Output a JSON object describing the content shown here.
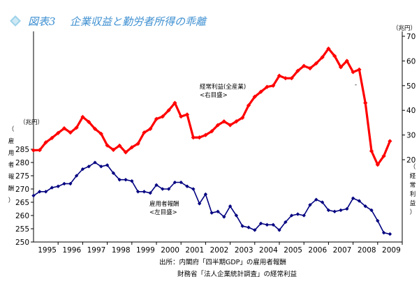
{
  "header": {
    "figure_label": "図表3",
    "title": "企業収益と勤労者所得の乖離"
  },
  "colors": {
    "profit_line": "#ff0000",
    "compensation_line": "#000080",
    "title_text": "#3d8fd1",
    "title_icon": "#9fd3ea"
  },
  "chart_data": {
    "type": "line",
    "title": "企業収益と勤労者所得の乖離",
    "x_labels": [
      "1995",
      "1996",
      "1997",
      "1998",
      "1999",
      "2000",
      "2001",
      "2002",
      "2003",
      "2004",
      "2005",
      "2006",
      "2007",
      "2008",
      "2009"
    ],
    "x_range": [
      1994.5,
      2009.5
    ],
    "left_axis": {
      "unit": "（兆円）",
      "label": "（雇用者報酬）",
      "ylim": [
        250,
        290
      ],
      "ticks": [
        250,
        255,
        260,
        265,
        270,
        275,
        280,
        285
      ]
    },
    "right_axis": {
      "unit": "（兆円）",
      "label": "（経常利益）",
      "ylim": [
        20,
        70
      ],
      "ticks": [
        20,
        30,
        40,
        50,
        60,
        70
      ]
    },
    "series": [
      {
        "name": "経常利益(全産業)",
        "sublabel": "<右目盛>",
        "axis": "right",
        "color": "#ff0000",
        "x": [
          1994.5,
          1994.75,
          1995,
          1995.25,
          1995.5,
          1995.75,
          1996,
          1996.25,
          1996.5,
          1996.75,
          1997,
          1997.25,
          1997.5,
          1997.75,
          1998,
          1998.25,
          1998.5,
          1998.75,
          1999,
          1999.25,
          1999.5,
          1999.75,
          2000,
          2000.25,
          2000.5,
          2000.75,
          2001,
          2001.25,
          2001.5,
          2001.75,
          2002,
          2002.25,
          2002.5,
          2002.75,
          2003,
          2003.25,
          2003.5,
          2003.75,
          2004,
          2004.25,
          2004.5,
          2004.75,
          2005,
          2005.25,
          2005.5,
          2005.75,
          2006,
          2006.25,
          2006.5,
          2006.75,
          2007,
          2007.25,
          2007.5,
          2007.75,
          2008,
          2008.25,
          2008.5,
          2008.75,
          2009,
          2009.25
        ],
        "values": [
          23.8,
          23.9,
          27.0,
          28.8,
          30.8,
          32.7,
          31.0,
          33.0,
          37.3,
          35.3,
          32.5,
          30.5,
          25.8,
          24.0,
          25.7,
          23.0,
          25.0,
          26.5,
          31.0,
          32.5,
          36.5,
          37.5,
          40.0,
          43.0,
          37.5,
          38.3,
          29.0,
          29.0,
          30.0,
          31.5,
          34.0,
          35.5,
          34.0,
          35.5,
          37.0,
          42.0,
          45.5,
          47.5,
          49.5,
          50.0,
          54.0,
          53.0,
          53.0,
          56.0,
          58.0,
          57.0,
          59.0,
          61.5,
          65.0,
          62.0,
          57.5,
          60.0,
          55.5,
          56.5,
          43.0,
          23.5,
          18.0,
          21.5,
          27.5,
          null
        ]
      },
      {
        "name": "雇用者報酬",
        "sublabel": "<左目盛>",
        "axis": "left",
        "color": "#000080",
        "x": [
          1994.5,
          1994.75,
          1995,
          1995.25,
          1995.5,
          1995.75,
          1996,
          1996.25,
          1996.5,
          1996.75,
          1997,
          1997.25,
          1997.5,
          1997.75,
          1998,
          1998.25,
          1998.5,
          1998.75,
          1999,
          1999.25,
          1999.5,
          1999.75,
          2000,
          2000.25,
          2000.5,
          2000.75,
          2001,
          2001.25,
          2001.5,
          2001.75,
          2002,
          2002.25,
          2002.5,
          2002.75,
          2003,
          2003.25,
          2003.5,
          2003.75,
          2004,
          2004.25,
          2004.5,
          2004.75,
          2005,
          2005.25,
          2005.5,
          2005.75,
          2006,
          2006.25,
          2006.5,
          2006.75,
          2007,
          2007.25,
          2007.5,
          2007.75,
          2008,
          2008.25,
          2008.5,
          2008.75,
          2009,
          2009.25
        ],
        "values": [
          267.5,
          269.0,
          269.0,
          270.5,
          271.0,
          272.0,
          272.0,
          275.0,
          277.5,
          278.5,
          280.0,
          278.5,
          279.0,
          276.0,
          273.5,
          273.5,
          273.0,
          269.0,
          269.0,
          268.5,
          271.5,
          270.0,
          270.0,
          272.5,
          272.5,
          271.0,
          270.0,
          264.5,
          268.0,
          261.0,
          261.5,
          259.5,
          263.5,
          260.0,
          256.0,
          255.5,
          254.5,
          257.0,
          256.5,
          256.5,
          254.5,
          257.5,
          260.0,
          260.5,
          260.0,
          264.0,
          266.0,
          265.0,
          262.0,
          261.5,
          262.0,
          262.5,
          266.5,
          265.5,
          263.5,
          262.0,
          258.0,
          253.5,
          253.0,
          null
        ]
      }
    ],
    "grid": false,
    "notes": [
      "出所：内閣府「四半期GDP」の雇用者報酬",
      "財務省「法人企業統計調査」の経常利益"
    ],
    "unit_mark": "-"
  }
}
